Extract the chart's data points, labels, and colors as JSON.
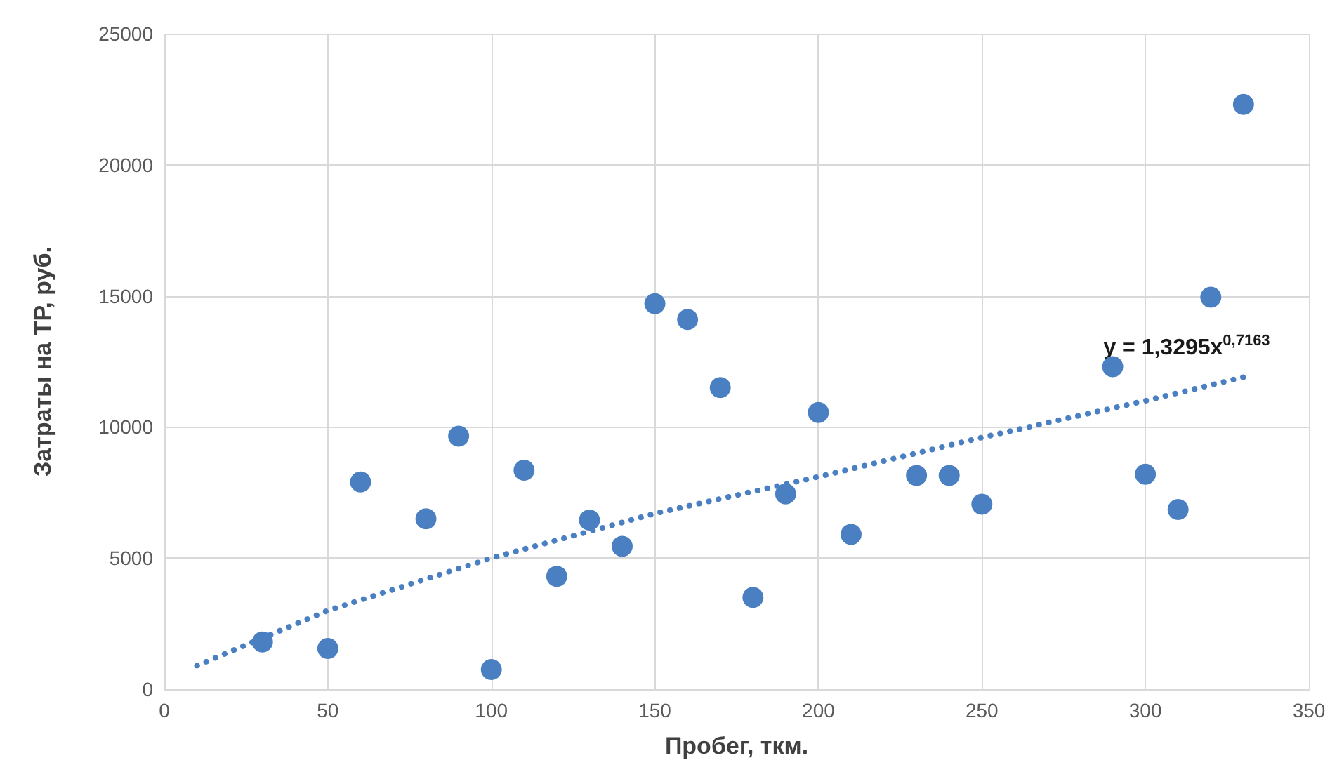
{
  "chart_data": {
    "type": "scatter",
    "xlabel": "Пробег, ткм.",
    "ylabel": "Затраты на ТР, руб.",
    "xlim": [
      0,
      350
    ],
    "xticks": [
      0,
      50,
      100,
      150,
      200,
      250,
      300,
      350
    ],
    "ylim": [
      0,
      25000
    ],
    "yticks": [
      0,
      5000,
      10000,
      15000,
      20000,
      25000
    ],
    "grid": true,
    "marker": "circle",
    "series": [
      {
        "color": "#4a7fc1",
        "x": [
          30,
          50,
          60,
          80,
          90,
          100,
          110,
          120,
          130,
          140,
          150,
          160,
          170,
          180,
          190,
          200,
          210,
          230,
          240,
          250,
          290,
          300,
          310,
          320,
          330
        ],
        "values": [
          1800,
          1550,
          7900,
          6500,
          9650,
          750,
          8350,
          4300,
          6450,
          5450,
          14700,
          14100,
          11500,
          3500,
          7450,
          10550,
          5900,
          8150,
          8150,
          7050,
          12300,
          8200,
          6850,
          14950,
          22300
        ]
      },
      {
        "type": "line",
        "color": "#4a7fc1",
        "line_style": "dotted",
        "marker": "none",
        "x": [
          10,
          50,
          100,
          150,
          200,
          250,
          300,
          330
        ],
        "values": [
          900,
          3000,
          5000,
          6700,
          8100,
          9600,
          11000,
          11900
        ]
      }
    ],
    "annotations": [
      "y = 1,3295x$^{0,7163}$"
    ]
  }
}
